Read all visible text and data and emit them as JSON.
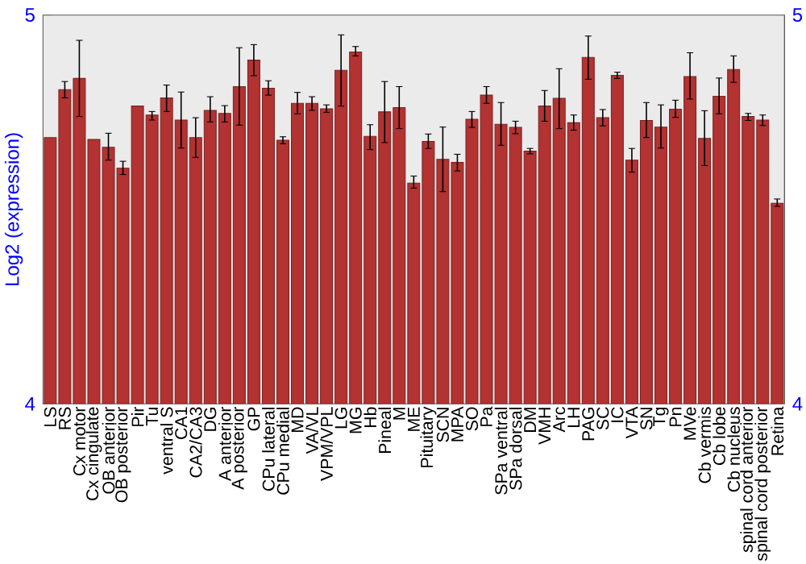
{
  "chart_data": {
    "type": "bar",
    "ylabel": "Log2 (expression)",
    "categories": [
      "LS",
      "RS",
      "Cx motor",
      "Cx cingulate",
      "OB anterior",
      "OB posterior",
      "Pir",
      "Tu",
      "ventral S",
      "CA1",
      "CA2/CA3",
      "DG",
      "A anterior",
      "A posterior",
      "GP",
      "CPu lateral",
      "CPu medial",
      "MD",
      "VA/VL",
      "VPM/VPL",
      "LG",
      "MG",
      "Hb",
      "Pineal",
      "M",
      "ME",
      "Pituitary",
      "SCN",
      "MPA",
      "SO",
      "Pa",
      "SPa ventral",
      "SPa dorsal",
      "DM",
      "VMH",
      "Arc",
      "LH",
      "PAG",
      "SC",
      "IC",
      "VTA",
      "SN",
      "Tg",
      "Pn",
      "MVe",
      "Cb vermis",
      "Cb lobe",
      "Cb nucleus",
      "spinal cord anterior",
      "spinal cord posterior",
      "Retina"
    ],
    "values": [
      4.685,
      4.808,
      4.837,
      4.68,
      4.66,
      4.606,
      4.766,
      4.743,
      4.787,
      4.73,
      4.685,
      4.755,
      4.747,
      4.816,
      4.884,
      4.812,
      4.678,
      4.773,
      4.773,
      4.759,
      4.858,
      4.905,
      4.688,
      4.751,
      4.762,
      4.568,
      4.675,
      4.629,
      4.621,
      4.732,
      4.794,
      4.719,
      4.711,
      4.65,
      4.766,
      4.786,
      4.723,
      4.891,
      4.736,
      4.845,
      4.627,
      4.729,
      4.712,
      4.758,
      4.842,
      4.683,
      4.791,
      4.86,
      4.739,
      4.73,
      4.516
    ],
    "errors": [
      null,
      [
        4.787,
        4.829
      ],
      [
        4.739,
        4.935
      ],
      null,
      [
        4.627,
        4.696
      ],
      [
        4.59,
        4.624
      ],
      null,
      [
        4.73,
        4.752
      ],
      [
        4.752,
        4.82
      ],
      [
        4.658,
        4.802
      ],
      [
        4.634,
        4.736
      ],
      [
        4.725,
        4.79
      ],
      [
        4.725,
        4.767
      ],
      [
        4.717,
        4.916
      ],
      [
        4.844,
        4.924
      ],
      [
        4.794,
        4.831
      ],
      [
        4.669,
        4.687
      ],
      [
        4.746,
        4.801
      ],
      [
        4.755,
        4.79
      ],
      [
        4.75,
        4.769
      ],
      [
        4.766,
        4.949
      ],
      [
        4.895,
        4.919
      ],
      [
        4.654,
        4.718
      ],
      [
        4.672,
        4.829
      ],
      [
        4.708,
        4.816
      ],
      [
        4.555,
        4.586
      ],
      [
        4.657,
        4.694
      ],
      [
        4.546,
        4.712
      ],
      [
        4.599,
        4.642
      ],
      [
        4.711,
        4.752
      ],
      [
        4.773,
        4.816
      ],
      [
        4.665,
        4.775
      ],
      [
        4.695,
        4.727
      ],
      [
        4.643,
        4.657
      ],
      [
        4.727,
        4.806
      ],
      [
        4.708,
        4.862
      ],
      [
        4.704,
        4.743
      ],
      [
        4.835,
        4.946
      ],
      [
        4.715,
        4.757
      ],
      [
        4.837,
        4.853
      ],
      [
        4.596,
        4.657
      ],
      [
        4.685,
        4.775
      ],
      [
        4.658,
        4.769
      ],
      [
        4.737,
        4.781
      ],
      [
        4.784,
        4.903
      ],
      [
        4.613,
        4.754
      ],
      [
        4.746,
        4.838
      ],
      [
        4.827,
        4.895
      ],
      [
        4.729,
        4.747
      ],
      [
        4.716,
        4.743
      ],
      [
        4.508,
        4.527
      ]
    ],
    "color": "#b33232",
    "ylim": [
      4,
      5
    ],
    "yticks": [
      4,
      5
    ],
    "y2lim": [
      4,
      5
    ],
    "y2ticks": [
      4,
      5
    ],
    "grid": false
  }
}
